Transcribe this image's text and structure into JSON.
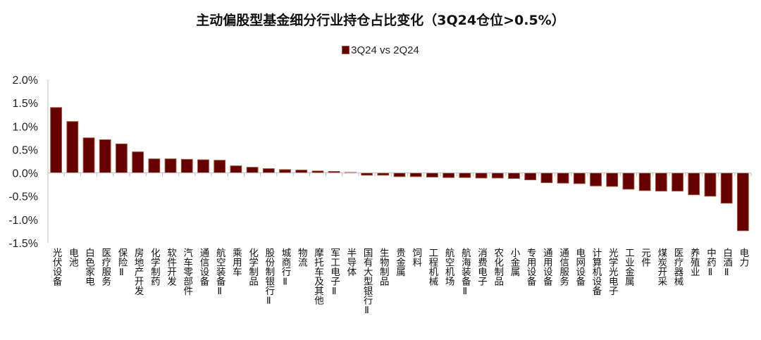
{
  "chart": {
    "title": "主动偏股型基金细分行业持仓占比变化（3Q24仓位>0.5%）",
    "legend_label": "3Q24 vs 2Q24",
    "bar_color": "#660000",
    "bar_edge_color": "#a0522d"
  },
  "chart_data": {
    "type": "bar",
    "title": "主动偏股型基金细分行业持仓占比变化（3Q24仓位>0.5%）",
    "xlabel": "",
    "ylabel": "",
    "ylim": [
      -1.5,
      2.0
    ],
    "yticks": [
      "2.0%",
      "1.5%",
      "1.0%",
      "0.5%",
      "0.0%",
      "-0.5%",
      "-1.0%",
      "-1.5%"
    ],
    "legend_position": "top",
    "grid": false,
    "categories": [
      "光伏设备",
      "电池",
      "白色家电",
      "医疗服务",
      "保险Ⅱ",
      "房地产开发",
      "化学制药",
      "软件开发",
      "汽车零部件",
      "通信设备",
      "航空装备Ⅱ",
      "乘用车",
      "化学制品",
      "股份制银行Ⅱ",
      "城商行Ⅱ",
      "物流",
      "摩托车及其他",
      "军工电子Ⅱ",
      "半导体",
      "国有大型银行Ⅱ",
      "生物制品",
      "贵金属",
      "饲料",
      "工程机械",
      "航空机场",
      "航海装备Ⅱ",
      "消费电子",
      "农化制品",
      "小金属",
      "专用设备",
      "通用设备",
      "通信服务",
      "电网设备",
      "计算机设备",
      "光学光电子",
      "工业金属",
      "元件",
      "煤炭开采",
      "医疗器械",
      "养殖业",
      "中药Ⅱ",
      "白酒Ⅱ",
      "电力"
    ],
    "series": [
      {
        "name": "3Q24 vs 2Q24",
        "unit": "%",
        "values": [
          1.4,
          1.1,
          0.75,
          0.71,
          0.62,
          0.45,
          0.3,
          0.3,
          0.29,
          0.28,
          0.27,
          0.15,
          0.12,
          0.09,
          0.07,
          0.06,
          0.04,
          0.03,
          0.01,
          -0.05,
          -0.05,
          -0.08,
          -0.08,
          -0.09,
          -0.1,
          -0.1,
          -0.11,
          -0.11,
          -0.12,
          -0.15,
          -0.21,
          -0.22,
          -0.23,
          -0.28,
          -0.29,
          -0.35,
          -0.38,
          -0.39,
          -0.39,
          -0.47,
          -0.5,
          -0.65,
          -1.24
        ]
      }
    ]
  }
}
